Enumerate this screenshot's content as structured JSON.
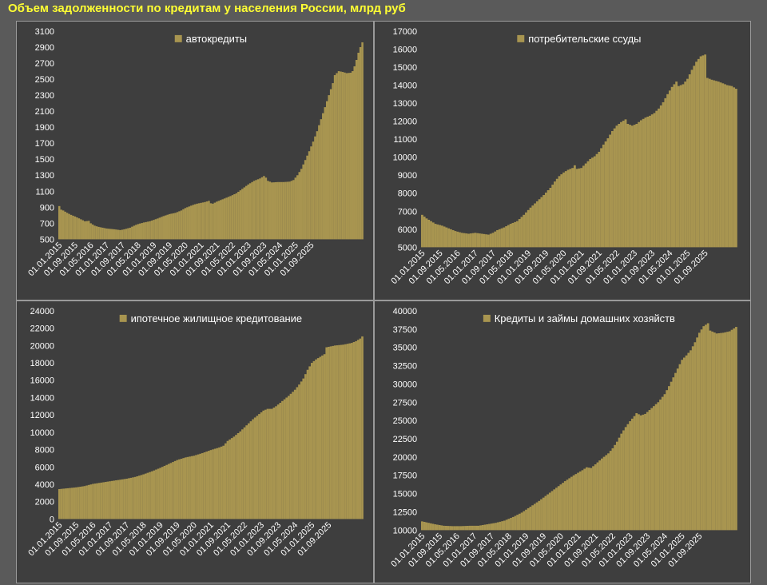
{
  "page": {
    "title": "Объем задолженности по кредитам у населения России, млрд руб"
  },
  "colors": {
    "background": "#5a5a5a",
    "panel_background": "#3e3e3e",
    "panel_border": "#9a9a9a",
    "bar": "#a89550",
    "title": "#ffff33",
    "text": "#ffffff"
  },
  "chart_data": [
    {
      "type": "bar",
      "series_name": "автокредиты",
      "legend_position": "top-center",
      "grid": false,
      "ylim": [
        500,
        3100
      ],
      "yticks": [
        500,
        700,
        900,
        1100,
        1300,
        1500,
        1700,
        1900,
        2100,
        2300,
        2500,
        2700,
        2900,
        3100
      ],
      "x_labels": [
        "01.01.2015",
        "01.09.2015",
        "01.05.2016",
        "01.01.2017",
        "01.09.2017",
        "01.05.2018",
        "01.01.2019",
        "01.09.2019",
        "01.05.2020",
        "01.01.2021",
        "01.09.2021",
        "01.05.2022",
        "01.01.2023",
        "01.09.2023",
        "01.05.2024",
        "01.01.2025",
        "01.09.2025"
      ],
      "anchors": [
        [
          0,
          915
        ],
        [
          1,
          870
        ],
        [
          2,
          860
        ],
        [
          4,
          830
        ],
        [
          6,
          805
        ],
        [
          8,
          785
        ],
        [
          11,
          750
        ],
        [
          13,
          725
        ],
        [
          15,
          730
        ],
        [
          16,
          700
        ],
        [
          18,
          670
        ],
        [
          20,
          655
        ],
        [
          24,
          635
        ],
        [
          28,
          625
        ],
        [
          31,
          615
        ],
        [
          33,
          625
        ],
        [
          36,
          645
        ],
        [
          38,
          670
        ],
        [
          40,
          690
        ],
        [
          43,
          710
        ],
        [
          46,
          725
        ],
        [
          50,
          760
        ],
        [
          53,
          790
        ],
        [
          56,
          815
        ],
        [
          59,
          830
        ],
        [
          62,
          860
        ],
        [
          64,
          890
        ],
        [
          66,
          910
        ],
        [
          68,
          930
        ],
        [
          70,
          945
        ],
        [
          72,
          955
        ],
        [
          74,
          965
        ],
        [
          76,
          980
        ],
        [
          77,
          950
        ],
        [
          78,
          945
        ],
        [
          80,
          970
        ],
        [
          83,
          1000
        ],
        [
          85,
          1020
        ],
        [
          87,
          1040
        ],
        [
          90,
          1075
        ],
        [
          93,
          1130
        ],
        [
          96,
          1185
        ],
        [
          99,
          1230
        ],
        [
          102,
          1260
        ],
        [
          104,
          1290
        ],
        [
          105,
          1270
        ],
        [
          106,
          1230
        ],
        [
          108,
          1210
        ],
        [
          111,
          1215
        ],
        [
          114,
          1215
        ],
        [
          117,
          1220
        ],
        [
          119,
          1240
        ],
        [
          121,
          1300
        ],
        [
          123,
          1380
        ],
        [
          125,
          1490
        ],
        [
          127,
          1600
        ],
        [
          129,
          1720
        ],
        [
          131,
          1850
        ],
        [
          133,
          2000
        ],
        [
          135,
          2150
        ],
        [
          137,
          2300
        ],
        [
          139,
          2450
        ],
        [
          140,
          2550
        ],
        [
          142,
          2600
        ],
        [
          144,
          2590
        ],
        [
          146,
          2575
        ],
        [
          148,
          2580
        ],
        [
          149,
          2600
        ],
        [
          150,
          2660
        ],
        [
          151,
          2740
        ],
        [
          152,
          2830
        ],
        [
          153,
          2900
        ],
        [
          154,
          2960
        ]
      ]
    },
    {
      "type": "bar",
      "series_name": "потребительские ссуды",
      "legend_position": "top-center",
      "grid": false,
      "ylim": [
        5000,
        17000
      ],
      "yticks": [
        5000,
        6000,
        7000,
        8000,
        9000,
        10000,
        11000,
        12000,
        13000,
        14000,
        15000,
        16000,
        17000
      ],
      "x_labels": [
        "01.01.2015",
        "01.09.2015",
        "01.05.2016",
        "01.01.2017",
        "01.09.2017",
        "01.05.2018",
        "01.01.2019",
        "01.09.2019",
        "01.05.2020",
        "01.01.2021",
        "01.09.2021",
        "01.05.2022",
        "01.01.2023",
        "01.09.2023",
        "01.05.2024",
        "01.01.2025",
        "01.09.2025"
      ],
      "anchors": [
        [
          0,
          6800
        ],
        [
          2,
          6600
        ],
        [
          4,
          6450
        ],
        [
          6,
          6300
        ],
        [
          9,
          6200
        ],
        [
          12,
          6050
        ],
        [
          15,
          5900
        ],
        [
          18,
          5800
        ],
        [
          21,
          5750
        ],
        [
          24,
          5800
        ],
        [
          27,
          5750
        ],
        [
          30,
          5700
        ],
        [
          32,
          5800
        ],
        [
          34,
          5950
        ],
        [
          37,
          6100
        ],
        [
          40,
          6300
        ],
        [
          43,
          6450
        ],
        [
          46,
          6800
        ],
        [
          49,
          7200
        ],
        [
          52,
          7550
        ],
        [
          55,
          7900
        ],
        [
          58,
          8300
        ],
        [
          60,
          8650
        ],
        [
          62,
          8950
        ],
        [
          64,
          9150
        ],
        [
          66,
          9300
        ],
        [
          68,
          9400
        ],
        [
          69,
          9550
        ],
        [
          70,
          9350
        ],
        [
          72,
          9400
        ],
        [
          74,
          9650
        ],
        [
          76,
          9900
        ],
        [
          78,
          10050
        ],
        [
          80,
          10300
        ],
        [
          82,
          10700
        ],
        [
          84,
          11050
        ],
        [
          86,
          11450
        ],
        [
          88,
          11750
        ],
        [
          90,
          11950
        ],
        [
          92,
          12100
        ],
        [
          93,
          11850
        ],
        [
          95,
          11750
        ],
        [
          97,
          11850
        ],
        [
          99,
          12050
        ],
        [
          101,
          12200
        ],
        [
          103,
          12300
        ],
        [
          105,
          12450
        ],
        [
          107,
          12700
        ],
        [
          109,
          13050
        ],
        [
          111,
          13500
        ],
        [
          113,
          13900
        ],
        [
          115,
          14200
        ],
        [
          116,
          13950
        ],
        [
          118,
          14050
        ],
        [
          120,
          14350
        ],
        [
          122,
          14850
        ],
        [
          124,
          15300
        ],
        [
          126,
          15600
        ],
        [
          128,
          15700
        ],
        [
          129,
          14400
        ],
        [
          131,
          14300
        ],
        [
          134,
          14200
        ],
        [
          136,
          14100
        ],
        [
          138,
          14000
        ],
        [
          140,
          13950
        ],
        [
          142,
          13800
        ]
      ]
    },
    {
      "type": "bar",
      "series_name": "ипотечное жилищное кредитование",
      "legend_position": "top-center",
      "grid": false,
      "ylim": [
        0,
        24000
      ],
      "yticks": [
        0,
        2000,
        4000,
        6000,
        8000,
        10000,
        12000,
        14000,
        16000,
        18000,
        20000,
        22000,
        24000
      ],
      "x_labels": [
        "01.01.2015",
        "01.09.2015",
        "01.05.2016",
        "01.01.2017",
        "01.09.2017",
        "01.05.2018",
        "01.01.2019",
        "01.09.2019",
        "01.05.2020",
        "01.01.2021",
        "01.09.2021",
        "01.05.2022",
        "01.01.2023",
        "01.09.2023",
        "01.05.2024",
        "01.01.2025",
        "01.09.2025"
      ],
      "anchors": [
        [
          0,
          3450
        ],
        [
          4,
          3550
        ],
        [
          8,
          3650
        ],
        [
          12,
          3800
        ],
        [
          16,
          4050
        ],
        [
          20,
          4200
        ],
        [
          24,
          4350
        ],
        [
          28,
          4500
        ],
        [
          32,
          4650
        ],
        [
          36,
          4850
        ],
        [
          40,
          5150
        ],
        [
          44,
          5500
        ],
        [
          48,
          5900
        ],
        [
          52,
          6350
        ],
        [
          56,
          6800
        ],
        [
          60,
          7100
        ],
        [
          64,
          7300
        ],
        [
          68,
          7600
        ],
        [
          72,
          7950
        ],
        [
          76,
          8250
        ],
        [
          78,
          8450
        ],
        [
          80,
          9000
        ],
        [
          83,
          9500
        ],
        [
          86,
          10100
        ],
        [
          89,
          10800
        ],
        [
          92,
          11500
        ],
        [
          95,
          12100
        ],
        [
          97,
          12500
        ],
        [
          99,
          12700
        ],
        [
          101,
          12700
        ],
        [
          103,
          13000
        ],
        [
          106,
          13600
        ],
        [
          109,
          14200
        ],
        [
          112,
          14900
        ],
        [
          114,
          15500
        ],
        [
          116,
          16200
        ],
        [
          118,
          17200
        ],
        [
          120,
          18000
        ],
        [
          122,
          18400
        ],
        [
          124,
          18700
        ],
        [
          126,
          19000
        ],
        [
          127,
          19800
        ],
        [
          129,
          19900
        ],
        [
          131,
          20000
        ],
        [
          133,
          20050
        ],
        [
          135,
          20100
        ],
        [
          137,
          20200
        ],
        [
          139,
          20300
        ],
        [
          141,
          20500
        ],
        [
          143,
          20800
        ],
        [
          144,
          21050
        ]
      ]
    },
    {
      "type": "bar",
      "series_name": "Кредиты и займы домашних хозяйств",
      "legend_position": "top-center",
      "grid": false,
      "ylim": [
        10000,
        40000
      ],
      "yticks": [
        10000,
        12500,
        15000,
        17500,
        20000,
        22500,
        25000,
        27500,
        30000,
        32500,
        35000,
        37500,
        40000
      ],
      "x_labels": [
        "01.01.2015",
        "01.09.2015",
        "01.05.2016",
        "01.01.2017",
        "01.09.2017",
        "01.05.2018",
        "01.01.2019",
        "01.09.2019",
        "01.05.2020",
        "01.01.2021",
        "01.09.2021",
        "01.05.2022",
        "01.01.2023",
        "01.09.2023",
        "01.05.2024",
        "01.01.2025",
        "01.09.2025"
      ],
      "anchors": [
        [
          0,
          11200
        ],
        [
          3,
          11000
        ],
        [
          6,
          10800
        ],
        [
          10,
          10600
        ],
        [
          14,
          10550
        ],
        [
          18,
          10550
        ],
        [
          22,
          10600
        ],
        [
          26,
          10600
        ],
        [
          30,
          10800
        ],
        [
          34,
          11000
        ],
        [
          38,
          11300
        ],
        [
          42,
          11800
        ],
        [
          46,
          12400
        ],
        [
          50,
          13200
        ],
        [
          54,
          14000
        ],
        [
          58,
          14900
        ],
        [
          62,
          15800
        ],
        [
          66,
          16700
        ],
        [
          70,
          17500
        ],
        [
          74,
          18200
        ],
        [
          76,
          18600
        ],
        [
          78,
          18500
        ],
        [
          80,
          19000
        ],
        [
          83,
          19800
        ],
        [
          86,
          20500
        ],
        [
          88,
          21200
        ],
        [
          90,
          22100
        ],
        [
          92,
          23200
        ],
        [
          94,
          24100
        ],
        [
          96,
          24900
        ],
        [
          98,
          25600
        ],
        [
          99,
          26000
        ],
        [
          101,
          25700
        ],
        [
          103,
          25900
        ],
        [
          106,
          26700
        ],
        [
          109,
          27500
        ],
        [
          112,
          28600
        ],
        [
          114,
          29700
        ],
        [
          116,
          30900
        ],
        [
          118,
          32100
        ],
        [
          120,
          33300
        ],
        [
          122,
          33900
        ],
        [
          124,
          34600
        ],
        [
          126,
          35700
        ],
        [
          128,
          37000
        ],
        [
          130,
          37900
        ],
        [
          132,
          38300
        ],
        [
          133,
          37300
        ],
        [
          136,
          36900
        ],
        [
          139,
          37000
        ],
        [
          142,
          37200
        ],
        [
          144,
          37600
        ],
        [
          145,
          37800
        ]
      ]
    }
  ]
}
